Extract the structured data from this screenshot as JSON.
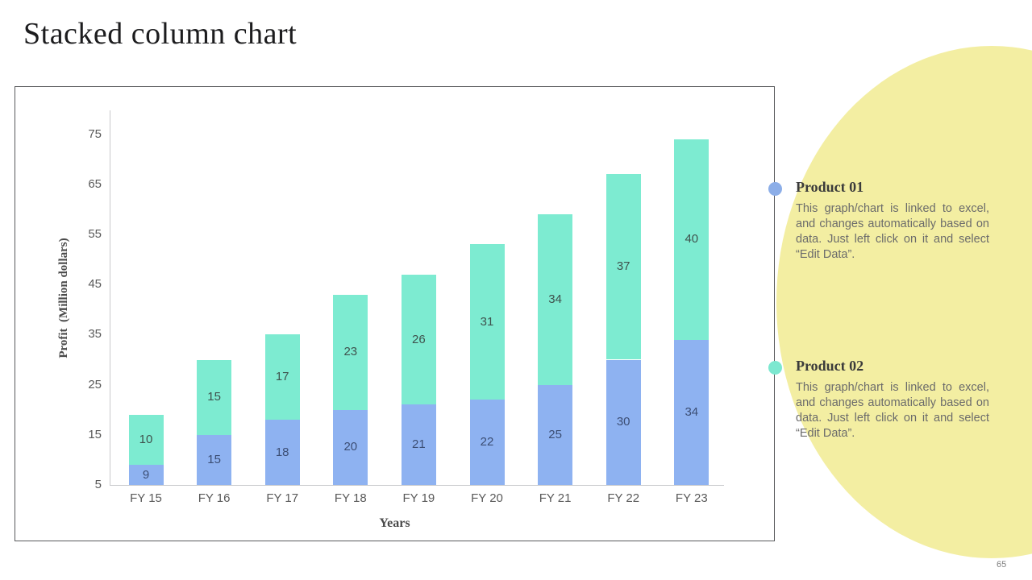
{
  "slide": {
    "title": "Stacked column chart",
    "page_number": "65"
  },
  "chart_data": {
    "type": "bar",
    "stacked": true,
    "categories": [
      "FY 15",
      "FY 16",
      "FY 17",
      "FY 18",
      "FY 19",
      "FY 20",
      "FY 21",
      "FY 22",
      "FY 23"
    ],
    "series": [
      {
        "name": "Product 01",
        "values": [
          9,
          15,
          18,
          20,
          21,
          22,
          25,
          30,
          34
        ],
        "color": "#8EB2F1",
        "label_color": "#3C4E74"
      },
      {
        "name": "Product 02",
        "values": [
          10,
          15,
          17,
          23,
          26,
          31,
          34,
          37,
          40
        ],
        "color": "#7DEBD1",
        "label_color": "#3F524D"
      }
    ],
    "xlabel": "Years",
    "ylabel": "Profit  (Million dollars)",
    "y_ticks": [
      5,
      15,
      25,
      35,
      45,
      55,
      65,
      75
    ],
    "y_axis_min": 5,
    "y_axis_max": 80,
    "grid": false,
    "data_labels": true,
    "legend_position": "right-callout"
  },
  "legend": {
    "items": [
      {
        "title": "Product 01",
        "dot_color": "#8CAEE8",
        "description": "This graph/chart is linked to excel, and changes automatically based on data. Just left click on it and select “Edit Data”."
      },
      {
        "title": "Product 02",
        "dot_color": "#7CE8D0",
        "description": "This graph/chart is linked to excel, and changes automatically based on data. Just left click on it and select “Edit Data”."
      }
    ]
  },
  "colors": {
    "callout_bg": "#F3EEA2",
    "accent_blue": "#8EB2F1",
    "accent_teal": "#7DEBD1"
  }
}
